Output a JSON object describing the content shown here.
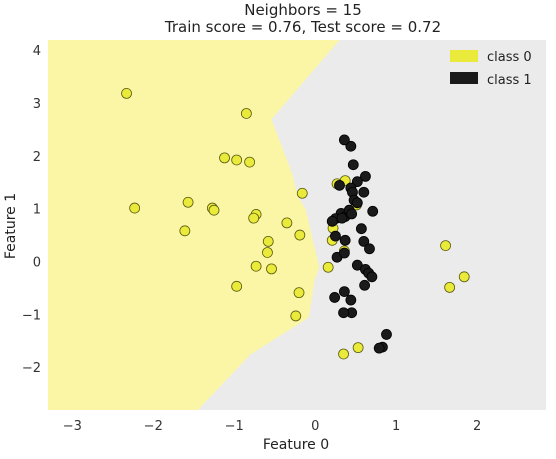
{
  "chart_data": {
    "type": "scatter",
    "title_lines": [
      "Neighbors = 15",
      "Train score = 0.76, Test score = 0.72"
    ],
    "xlabel": "Feature 0",
    "ylabel": "Feature 1",
    "xlim": [
      -3.3,
      2.85
    ],
    "ylim": [
      -2.8,
      4.2
    ],
    "x_ticks": [
      -3,
      -2,
      -1,
      0,
      1,
      2
    ],
    "y_ticks": [
      -2,
      -1,
      0,
      1,
      2,
      3,
      4
    ],
    "x_tick_labels": [
      "−3",
      "−2",
      "−1",
      "0",
      "1",
      "2"
    ],
    "y_tick_labels": [
      "−2",
      "−1",
      "0",
      "1",
      "2",
      "3",
      "4"
    ],
    "grid": false,
    "legend_position": "top-right",
    "background_color": "#ebebeb",
    "decision_region_class0": {
      "color": "#fbf6a6",
      "polygon": [
        [
          -3.3,
          4.2
        ],
        [
          0.3,
          4.2
        ],
        [
          -0.54,
          2.7
        ],
        [
          -0.28,
          1.65
        ],
        [
          -0.22,
          1.25
        ],
        [
          -0.12,
          1.0
        ],
        [
          -0.02,
          0.35
        ],
        [
          0.05,
          -0.1
        ],
        [
          -0.01,
          -0.35
        ],
        [
          -0.08,
          -1.05
        ],
        [
          -0.8,
          -1.75
        ],
        [
          -1.45,
          -2.8
        ],
        [
          -3.3,
          -2.8
        ]
      ]
    },
    "series": [
      {
        "name": "class 0",
        "color": "#eaea3b",
        "edge": "#5a5a10",
        "points": [
          [
            -2.33,
            3.19
          ],
          [
            -0.85,
            2.81
          ],
          [
            -1.12,
            1.97
          ],
          [
            -0.97,
            1.93
          ],
          [
            -0.81,
            1.89
          ],
          [
            -0.16,
            1.3
          ],
          [
            0.37,
            1.54
          ],
          [
            0.27,
            1.48
          ],
          [
            0.51,
            1.08
          ],
          [
            -2.23,
            1.02
          ],
          [
            -1.57,
            1.13
          ],
          [
            -1.27,
            1.02
          ],
          [
            -1.25,
            0.98
          ],
          [
            -0.73,
            0.9
          ],
          [
            -0.76,
            0.83
          ],
          [
            -0.35,
            0.74
          ],
          [
            0.22,
            0.64
          ],
          [
            -1.61,
            0.59
          ],
          [
            -0.19,
            0.51
          ],
          [
            0.21,
            0.41
          ],
          [
            -0.58,
            0.39
          ],
          [
            0.36,
            0.21
          ],
          [
            -0.59,
            0.18
          ],
          [
            -0.73,
            -0.08
          ],
          [
            -0.54,
            -0.13
          ],
          [
            0.16,
            -0.1
          ],
          [
            -0.97,
            -0.46
          ],
          [
            -0.2,
            -0.58
          ],
          [
            -0.24,
            -1.02
          ],
          [
            1.61,
            0.31
          ],
          [
            1.84,
            -0.28
          ],
          [
            1.66,
            -0.48
          ],
          [
            0.53,
            -1.62
          ],
          [
            0.35,
            -1.74
          ]
        ]
      },
      {
        "name": "class 1",
        "color": "#1a1a1a",
        "edge": "#000000",
        "points": [
          [
            0.44,
            2.19
          ],
          [
            0.36,
            2.31
          ],
          [
            0.47,
            1.84
          ],
          [
            0.62,
            1.62
          ],
          [
            0.52,
            1.52
          ],
          [
            0.6,
            1.32
          ],
          [
            0.3,
            1.45
          ],
          [
            0.44,
            1.4
          ],
          [
            0.46,
            1.32
          ],
          [
            0.48,
            1.17
          ],
          [
            0.52,
            1.12
          ],
          [
            0.71,
            0.96
          ],
          [
            0.32,
            0.92
          ],
          [
            0.37,
            0.86
          ],
          [
            0.42,
            0.98
          ],
          [
            0.45,
            0.91
          ],
          [
            0.25,
            0.82
          ],
          [
            0.21,
            0.77
          ],
          [
            0.33,
            0.83
          ],
          [
            0.57,
            0.63
          ],
          [
            0.25,
            0.49
          ],
          [
            0.37,
            0.41
          ],
          [
            0.6,
            0.39
          ],
          [
            0.67,
            0.25
          ],
          [
            0.27,
            0.09
          ],
          [
            0.36,
            0.17
          ],
          [
            0.52,
            -0.06
          ],
          [
            0.62,
            -0.14
          ],
          [
            0.66,
            -0.21
          ],
          [
            0.7,
            -0.28
          ],
          [
            0.61,
            -0.44
          ],
          [
            0.36,
            -0.56
          ],
          [
            0.44,
            -0.72
          ],
          [
            0.24,
            -0.67
          ],
          [
            0.45,
            -0.96
          ],
          [
            0.35,
            -0.96
          ],
          [
            0.88,
            -1.37
          ],
          [
            0.83,
            -1.61
          ],
          [
            0.79,
            -1.63
          ]
        ]
      }
    ]
  }
}
